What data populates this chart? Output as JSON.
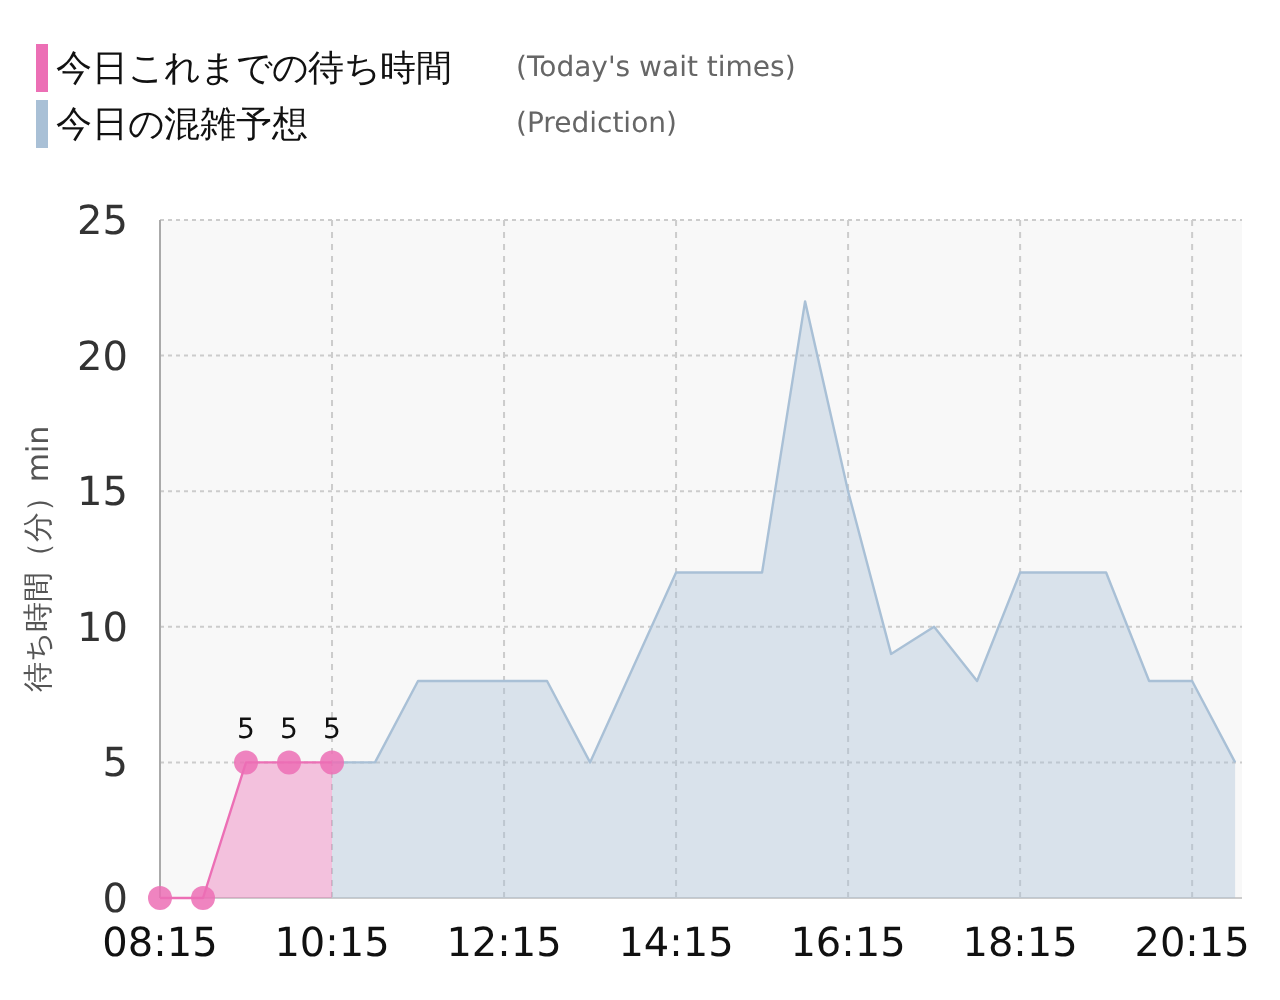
{
  "chart_data": {
    "type": "area",
    "ylabel": "待ち時間（分）min",
    "xlim": [
      8.25,
      20.83
    ],
    "ylim": [
      0,
      25
    ],
    "xticks": [
      {
        "value": 8.25,
        "label": "08:15"
      },
      {
        "value": 10.25,
        "label": "10:15"
      },
      {
        "value": 12.25,
        "label": "12:15"
      },
      {
        "value": 14.25,
        "label": "14:15"
      },
      {
        "value": 16.25,
        "label": "16:15"
      },
      {
        "value": 18.25,
        "label": "18:15"
      },
      {
        "value": 20.25,
        "label": "20:15"
      }
    ],
    "yticks": [
      0,
      5,
      10,
      15,
      20,
      25
    ],
    "grid": true,
    "legend": "top left",
    "series": [
      {
        "name": "今日の混雑予想",
        "color": "#a9c0d6",
        "marker": "none",
        "x": [
          10.25,
          10.75,
          11.25,
          11.75,
          12.25,
          12.75,
          13.25,
          14.25,
          14.75,
          15.25,
          15.75,
          16.25,
          16.75,
          17.25,
          17.75,
          18.25,
          18.75,
          19.25,
          19.75,
          20.25,
          20.75
        ],
        "values": [
          5,
          5,
          8,
          8,
          8,
          8,
          5,
          12,
          12,
          12,
          22,
          15,
          9,
          10,
          8,
          12,
          12,
          12,
          8,
          8,
          5
        ]
      },
      {
        "name": "今日これまでの待ち時間",
        "color": "#ec6fb5",
        "marker": "circle",
        "x": [
          8.25,
          8.75,
          9.25,
          9.75,
          10.25
        ],
        "values": [
          0,
          0,
          5,
          5,
          5
        ],
        "value_labels": [
          null,
          null,
          "5",
          "5",
          "5"
        ]
      }
    ],
    "annotations": [
      "(Today's wait times)",
      "(Prediction)"
    ]
  }
}
